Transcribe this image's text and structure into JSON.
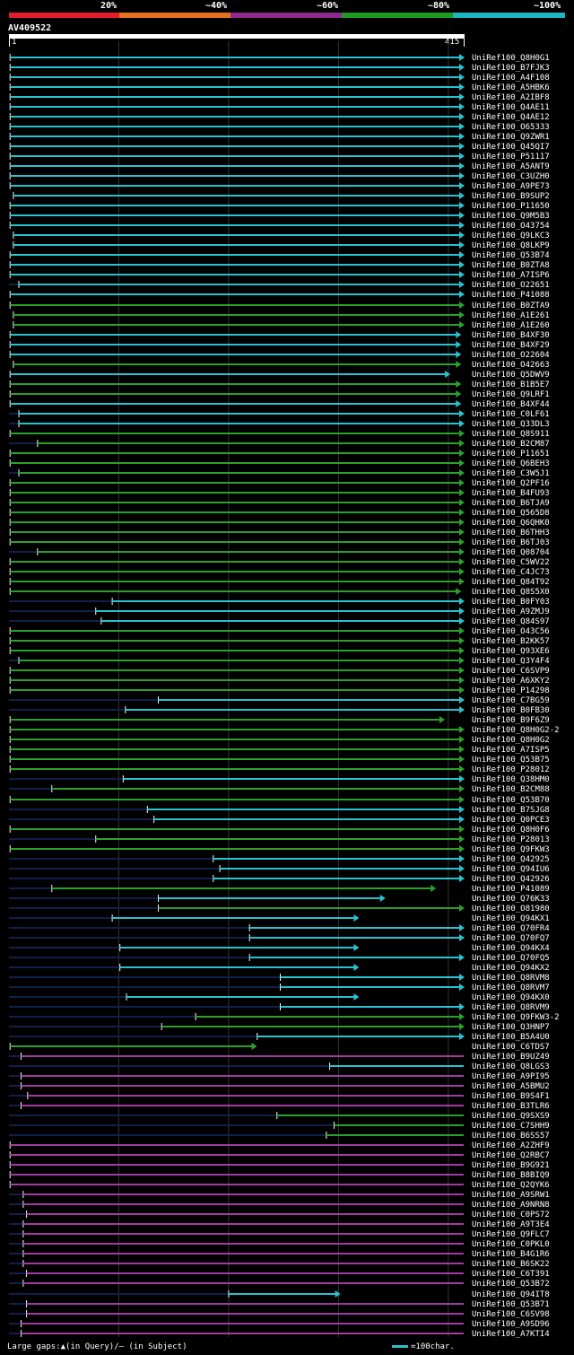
{
  "query": {
    "name": "AV409522",
    "start": "1",
    "end": "415",
    "length": 415
  },
  "scale": {
    "labels": [
      "20%",
      "~40%",
      "~60%",
      "~80%",
      "~100%"
    ],
    "colors": [
      "#e51c2c",
      "#e5701e",
      "#8e2a8e",
      "#1e9a1e",
      "#1ab7c0"
    ]
  },
  "colors": {
    "cyan": "#27c3cf",
    "green": "#2aa12a",
    "magenta": "#a23aa2",
    "gap": "#10204a",
    "grid": "#333333",
    "axis": "#ffffff"
  },
  "legend": {
    "gaps": "Large gaps:▲(in Query)/– (in Subject)",
    "bar": "=100char."
  },
  "hits": [
    {
      "n": "UniRef100_Q8H0G1",
      "s": 2,
      "e": 415,
      "c": "cyan",
      "a": 1
    },
    {
      "n": "UniRef100_B7FJK3",
      "s": 2,
      "e": 415,
      "c": "cyan",
      "a": 1
    },
    {
      "n": "UniRef100_A4F108",
      "s": 2,
      "e": 415,
      "c": "cyan",
      "a": 1
    },
    {
      "n": "UniRef100_A5HBK6",
      "s": 2,
      "e": 415,
      "c": "cyan",
      "a": 1
    },
    {
      "n": "UniRef100_A2IBF8",
      "s": 2,
      "e": 415,
      "c": "cyan",
      "a": 1
    },
    {
      "n": "UniRef100_Q4AE11",
      "s": 2,
      "e": 415,
      "c": "cyan",
      "a": 1
    },
    {
      "n": "UniRef100_Q4AE12",
      "s": 2,
      "e": 415,
      "c": "cyan",
      "a": 1
    },
    {
      "n": "UniRef100_O65333",
      "s": 2,
      "e": 415,
      "c": "cyan",
      "a": 1
    },
    {
      "n": "UniRef100_Q9ZWR1",
      "s": 2,
      "e": 415,
      "c": "cyan",
      "a": 1
    },
    {
      "n": "UniRef100_Q45QI7",
      "s": 2,
      "e": 415,
      "c": "cyan",
      "a": 1
    },
    {
      "n": "UniRef100_P51117",
      "s": 2,
      "e": 415,
      "c": "cyan",
      "a": 1
    },
    {
      "n": "UniRef100_A5ANT9",
      "s": 2,
      "e": 415,
      "c": "cyan",
      "a": 1
    },
    {
      "n": "UniRef100_C3UZH0",
      "s": 2,
      "e": 415,
      "c": "cyan",
      "a": 1
    },
    {
      "n": "UniRef100_A9PE73",
      "s": 2,
      "e": 415,
      "c": "cyan",
      "a": 1
    },
    {
      "n": "UniRef100_B9SUP2",
      "s": 5,
      "e": 415,
      "c": "cyan",
      "a": 1
    },
    {
      "n": "UniRef100_P11650",
      "s": 2,
      "e": 415,
      "c": "cyan",
      "a": 1
    },
    {
      "n": "UniRef100_Q9M5B3",
      "s": 2,
      "e": 415,
      "c": "cyan",
      "a": 1
    },
    {
      "n": "UniRef100_O43754",
      "s": 2,
      "e": 415,
      "c": "cyan",
      "a": 1
    },
    {
      "n": "UniRef100_Q9LKC3",
      "s": 5,
      "e": 415,
      "c": "cyan",
      "a": 1
    },
    {
      "n": "UniRef100_Q8LKP9",
      "s": 5,
      "e": 415,
      "c": "cyan",
      "a": 1
    },
    {
      "n": "UniRef100_Q53B74",
      "s": 2,
      "e": 415,
      "c": "cyan",
      "a": 1
    },
    {
      "n": "UniRef100_B0ZTA8",
      "s": 2,
      "e": 415,
      "c": "cyan",
      "a": 1
    },
    {
      "n": "UniRef100_A7ISP6",
      "s": 2,
      "e": 415,
      "c": "cyan",
      "a": 1
    },
    {
      "n": "UniRef100_O22651",
      "s": 10,
      "e": 415,
      "c": "cyan",
      "a": 1
    },
    {
      "n": "UniRef100_P41088",
      "s": 2,
      "e": 415,
      "c": "cyan",
      "a": 1
    },
    {
      "n": "UniRef100_B0ZTA9",
      "s": 2,
      "e": 415,
      "c": "green",
      "a": 1
    },
    {
      "n": "UniRef100_A1E261",
      "s": 5,
      "e": 415,
      "c": "green",
      "a": 1
    },
    {
      "n": "UniRef100_A1E260",
      "s": 5,
      "e": 415,
      "c": "green",
      "a": 1
    },
    {
      "n": "UniRef100_B4XF30",
      "s": 2,
      "e": 412,
      "c": "cyan",
      "a": 1
    },
    {
      "n": "UniRef100_B4XF29",
      "s": 2,
      "e": 412,
      "c": "cyan",
      "a": 1
    },
    {
      "n": "UniRef100_O22604",
      "s": 2,
      "e": 412,
      "c": "cyan",
      "a": 1
    },
    {
      "n": "UniRef100_O42663",
      "s": 5,
      "e": 412,
      "c": "green",
      "a": 1
    },
    {
      "n": "UniRef100_Q5DWV9",
      "s": 2,
      "e": 402,
      "c": "cyan",
      "a": 1
    },
    {
      "n": "UniRef100_B1B5E7",
      "s": 2,
      "e": 412,
      "c": "green",
      "a": 1
    },
    {
      "n": "UniRef100_Q9LRF1",
      "s": 2,
      "e": 412,
      "c": "green",
      "a": 1
    },
    {
      "n": "UniRef100_B4XF44",
      "s": 2,
      "e": 412,
      "c": "cyan",
      "a": 1
    },
    {
      "n": "UniRef100_C0LF61",
      "s": 10,
      "e": 415,
      "c": "cyan",
      "a": 1
    },
    {
      "n": "UniRef100_Q33DL3",
      "s": 10,
      "e": 415,
      "c": "cyan",
      "a": 1
    },
    {
      "n": "UniRef100_Q8S911",
      "s": 2,
      "e": 415,
      "c": "green",
      "a": 1
    },
    {
      "n": "UniRef100_B2CM87",
      "s": 27,
      "e": 415,
      "c": "green",
      "a": 1
    },
    {
      "n": "UniRef100_P11651",
      "s": 2,
      "e": 415,
      "c": "green",
      "a": 1
    },
    {
      "n": "UniRef100_Q6BEH3",
      "s": 2,
      "e": 415,
      "c": "green",
      "a": 1
    },
    {
      "n": "UniRef100_C3W5J1",
      "s": 10,
      "e": 415,
      "c": "green",
      "a": 1
    },
    {
      "n": "UniRef100_Q2PF16",
      "s": 2,
      "e": 415,
      "c": "green",
      "a": 1
    },
    {
      "n": "UniRef100_B4FU93",
      "s": 2,
      "e": 415,
      "c": "green",
      "a": 1
    },
    {
      "n": "UniRef100_B6TJA9",
      "s": 2,
      "e": 415,
      "c": "green",
      "a": 1
    },
    {
      "n": "UniRef100_Q565D8",
      "s": 2,
      "e": 415,
      "c": "green",
      "a": 1
    },
    {
      "n": "UniRef100_Q6QHK0",
      "s": 2,
      "e": 415,
      "c": "green",
      "a": 1
    },
    {
      "n": "UniRef100_B6THH3",
      "s": 2,
      "e": 415,
      "c": "green",
      "a": 1
    },
    {
      "n": "UniRef100_B6TJ03",
      "s": 2,
      "e": 415,
      "c": "green",
      "a": 1
    },
    {
      "n": "UniRef100_Q08704",
      "s": 27,
      "e": 415,
      "c": "green",
      "a": 1
    },
    {
      "n": "UniRef100_C5WV22",
      "s": 2,
      "e": 415,
      "c": "green",
      "a": 1
    },
    {
      "n": "UniRef100_C4JC73",
      "s": 2,
      "e": 415,
      "c": "green",
      "a": 1
    },
    {
      "n": "UniRef100_Q84T92",
      "s": 2,
      "e": 415,
      "c": "green",
      "a": 1
    },
    {
      "n": "UniRef100_Q8S5X0",
      "s": 2,
      "e": 412,
      "c": "green",
      "a": 1
    },
    {
      "n": "UniRef100_B0FY03",
      "s": 95,
      "e": 415,
      "c": "cyan",
      "a": 1
    },
    {
      "n": "UniRef100_A9ZMJ9",
      "s": 80,
      "e": 415,
      "c": "cyan",
      "a": 1
    },
    {
      "n": "UniRef100_Q84S97",
      "s": 85,
      "e": 415,
      "c": "cyan",
      "a": 1
    },
    {
      "n": "UniRef100_O43C56",
      "s": 2,
      "e": 415,
      "c": "green",
      "a": 1
    },
    {
      "n": "UniRef100_B2KK57",
      "s": 2,
      "e": 415,
      "c": "green",
      "a": 1
    },
    {
      "n": "UniRef100_Q93XE6",
      "s": 2,
      "e": 415,
      "c": "green",
      "a": 1
    },
    {
      "n": "UniRef100_Q3Y4F4",
      "s": 10,
      "e": 415,
      "c": "green",
      "a": 1
    },
    {
      "n": "UniRef100_C6SVP9",
      "s": 2,
      "e": 415,
      "c": "green",
      "a": 1
    },
    {
      "n": "UniRef100_A6XKY2",
      "s": 2,
      "e": 415,
      "c": "green",
      "a": 1
    },
    {
      "n": "UniRef100_P14298",
      "s": 2,
      "e": 415,
      "c": "green",
      "a": 1
    },
    {
      "n": "UniRef100_C7BG59",
      "s": 137,
      "e": 415,
      "c": "cyan",
      "a": 1
    },
    {
      "n": "UniRef100_B0FB30",
      "s": 107,
      "e": 415,
      "c": "cyan",
      "a": 1
    },
    {
      "n": "UniRef100_B9F6Z9",
      "s": 2,
      "e": 397,
      "c": "green",
      "a": 1
    },
    {
      "n": "UniRef100_Q8H0G2-2",
      "s": 2,
      "e": 415,
      "c": "green",
      "a": 1
    },
    {
      "n": "UniRef100_Q8H0G2",
      "s": 2,
      "e": 415,
      "c": "green",
      "a": 1
    },
    {
      "n": "UniRef100_A7ISP5",
      "s": 2,
      "e": 415,
      "c": "green",
      "a": 1
    },
    {
      "n": "UniRef100_Q53B75",
      "s": 2,
      "e": 415,
      "c": "green",
      "a": 1
    },
    {
      "n": "UniRef100_P28012",
      "s": 2,
      "e": 415,
      "c": "green",
      "a": 1
    },
    {
      "n": "UniRef100_Q38HM0",
      "s": 105,
      "e": 415,
      "c": "cyan",
      "a": 1
    },
    {
      "n": "UniRef100_B2CM88",
      "s": 40,
      "e": 415,
      "c": "green",
      "a": 1
    },
    {
      "n": "UniRef100_Q53B70",
      "s": 2,
      "e": 415,
      "c": "green",
      "a": 1
    },
    {
      "n": "UniRef100_B7SJG8",
      "s": 127,
      "e": 415,
      "c": "cyan",
      "a": 1
    },
    {
      "n": "UniRef100_Q0PCE3",
      "s": 133,
      "e": 415,
      "c": "cyan",
      "a": 1
    },
    {
      "n": "UniRef100_Q8H0F6",
      "s": 2,
      "e": 415,
      "c": "green",
      "a": 1
    },
    {
      "n": "UniRef100_P28013",
      "s": 80,
      "e": 415,
      "c": "green",
      "a": 1
    },
    {
      "n": "UniRef100_Q9FKW3",
      "s": 2,
      "e": 415,
      "c": "green",
      "a": 1
    },
    {
      "n": "UniRef100_Q42925",
      "s": 187,
      "e": 415,
      "c": "cyan",
      "a": 1
    },
    {
      "n": "UniRef100_Q94IU6",
      "s": 193,
      "e": 415,
      "c": "cyan",
      "a": 1
    },
    {
      "n": "UniRef100_Q42926",
      "s": 187,
      "e": 415,
      "c": "cyan",
      "a": 1
    },
    {
      "n": "UniRef100_P41089",
      "s": 40,
      "e": 389,
      "c": "green",
      "a": 1
    },
    {
      "n": "UniRef100_Q76K33",
      "s": 137,
      "e": 343,
      "c": "cyan",
      "a": 1
    },
    {
      "n": "UniRef100_O81980",
      "s": 137,
      "e": 415,
      "c": "green",
      "a": 1
    },
    {
      "n": "UniRef100_Q94KX1",
      "s": 95,
      "e": 319,
      "c": "cyan",
      "a": 1
    },
    {
      "n": "UniRef100_Q70FR4",
      "s": 220,
      "e": 415,
      "c": "cyan",
      "a": 1
    },
    {
      "n": "UniRef100_Q70FQ7",
      "s": 220,
      "e": 415,
      "c": "cyan",
      "a": 1
    },
    {
      "n": "UniRef100_Q94KX4",
      "s": 102,
      "e": 319,
      "c": "cyan",
      "a": 1
    },
    {
      "n": "UniRef100_Q70FQ5",
      "s": 220,
      "e": 415,
      "c": "cyan",
      "a": 1
    },
    {
      "n": "UniRef100_Q94KX2",
      "s": 102,
      "e": 319,
      "c": "cyan",
      "a": 1
    },
    {
      "n": "UniRef100_Q8RVM8",
      "s": 248,
      "e": 415,
      "c": "cyan",
      "a": 1
    },
    {
      "n": "UniRef100_Q8RVM7",
      "s": 248,
      "e": 415,
      "c": "cyan",
      "a": 1
    },
    {
      "n": "UniRef100_Q94KX0",
      "s": 108,
      "e": 319,
      "c": "cyan",
      "a": 1
    },
    {
      "n": "UniRef100_Q8RVM9",
      "s": 248,
      "e": 415,
      "c": "cyan",
      "a": 1
    },
    {
      "n": "UniRef100_Q9FKW3-2",
      "s": 171,
      "e": 415,
      "c": "green",
      "a": 1
    },
    {
      "n": "UniRef100_Q3HNP7",
      "s": 140,
      "e": 415,
      "c": "green",
      "a": 1
    },
    {
      "n": "UniRef100_B5A4U0",
      "s": 227,
      "e": 415,
      "c": "cyan",
      "a": 1
    },
    {
      "n": "UniRef100_C6TDS7",
      "s": 2,
      "e": 226,
      "c": "green",
      "a": 1
    },
    {
      "n": "UniRef100_B9UZ49",
      "s": 12,
      "e": 415,
      "c": "magenta",
      "a": 0
    },
    {
      "n": "UniRef100_Q8LGS3",
      "s": 293,
      "e": 415,
      "c": "cyan",
      "a": 0
    },
    {
      "n": "UniRef100_A9PI95",
      "s": 12,
      "e": 415,
      "c": "magenta",
      "a": 0
    },
    {
      "n": "UniRef100_A5BMU2",
      "s": 12,
      "e": 415,
      "c": "magenta",
      "a": 0
    },
    {
      "n": "UniRef100_B9S4F1",
      "s": 18,
      "e": 415,
      "c": "magenta",
      "a": 0
    },
    {
      "n": "UniRef100_B3TLR6",
      "s": 12,
      "e": 415,
      "c": "magenta",
      "a": 0
    },
    {
      "n": "UniRef100_Q9SXS9",
      "s": 245,
      "e": 415,
      "c": "green",
      "a": 0
    },
    {
      "n": "UniRef100_C7SHH9",
      "s": 297,
      "e": 415,
      "c": "green",
      "a": 0
    },
    {
      "n": "UniRef100_B6SS57",
      "s": 290,
      "e": 415,
      "c": "green",
      "a": 0
    },
    {
      "n": "UniRef100_A2ZHF9",
      "s": 2,
      "e": 415,
      "c": "magenta",
      "a": 0
    },
    {
      "n": "UniRef100_Q2RBC7",
      "s": 2,
      "e": 415,
      "c": "magenta",
      "a": 0
    },
    {
      "n": "UniRef100_B9G921",
      "s": 2,
      "e": 415,
      "c": "magenta",
      "a": 0
    },
    {
      "n": "UniRef100_B8BIQ9",
      "s": 2,
      "e": 415,
      "c": "magenta",
      "a": 0
    },
    {
      "n": "UniRef100_Q2QYK6",
      "s": 2,
      "e": 415,
      "c": "magenta",
      "a": 0
    },
    {
      "n": "UniRef100_A9SRW1",
      "s": 14,
      "e": 415,
      "c": "magenta",
      "a": 0
    },
    {
      "n": "UniRef100_A9NRN8",
      "s": 14,
      "e": 415,
      "c": "magenta",
      "a": 0
    },
    {
      "n": "UniRef100_C0PS72",
      "s": 17,
      "e": 415,
      "c": "magenta",
      "a": 0
    },
    {
      "n": "UniRef100_A9T3E4",
      "s": 14,
      "e": 415,
      "c": "magenta",
      "a": 0
    },
    {
      "n": "UniRef100_Q9FLC7",
      "s": 14,
      "e": 415,
      "c": "magenta",
      "a": 0
    },
    {
      "n": "UniRef100_C0PKL0",
      "s": 14,
      "e": 415,
      "c": "magenta",
      "a": 0
    },
    {
      "n": "UniRef100_B4G1R6",
      "s": 14,
      "e": 415,
      "c": "magenta",
      "a": 0
    },
    {
      "n": "UniRef100_B6SK22",
      "s": 14,
      "e": 415,
      "c": "magenta",
      "a": 0
    },
    {
      "n": "UniRef100_C6T391",
      "s": 17,
      "e": 415,
      "c": "magenta",
      "a": 0
    },
    {
      "n": "UniRef100_Q53B72",
      "s": 14,
      "e": 415,
      "c": "magenta",
      "a": 0
    },
    {
      "n": "UniRef100_Q94IT8",
      "s": 201,
      "e": 302,
      "c": "cyan",
      "a": 1
    },
    {
      "n": "UniRef100_Q53B71",
      "s": 17,
      "e": 415,
      "c": "magenta",
      "a": 0
    },
    {
      "n": "UniRef100_C6SV98",
      "s": 17,
      "e": 415,
      "c": "magenta",
      "a": 0
    },
    {
      "n": "UniRef100_A9SD96",
      "s": 12,
      "e": 415,
      "c": "magenta",
      "a": 0
    },
    {
      "n": "UniRef100_A7KTI4",
      "s": 12,
      "e": 415,
      "c": "magenta",
      "a": 0
    }
  ]
}
